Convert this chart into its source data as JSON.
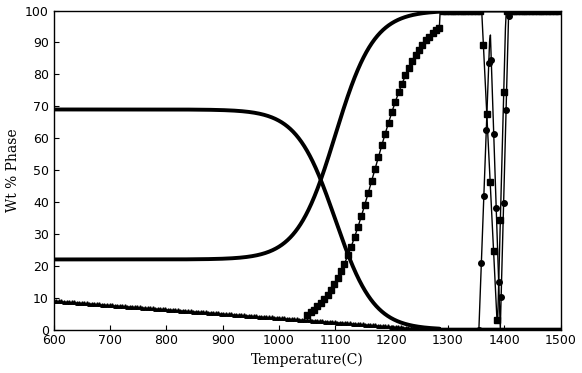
{
  "title": "",
  "xlabel": "Temperature(C)",
  "ylabel": "Wt % Phase",
  "xlim": [
    600,
    1500
  ],
  "ylim": [
    0,
    100
  ],
  "xticks": [
    600,
    700,
    800,
    900,
    1000,
    1100,
    1200,
    1300,
    1400,
    1500
  ],
  "yticks": [
    0,
    10,
    20,
    30,
    40,
    50,
    60,
    70,
    80,
    90,
    100
  ],
  "background_color": "#ffffff",
  "line_color": "#000000"
}
